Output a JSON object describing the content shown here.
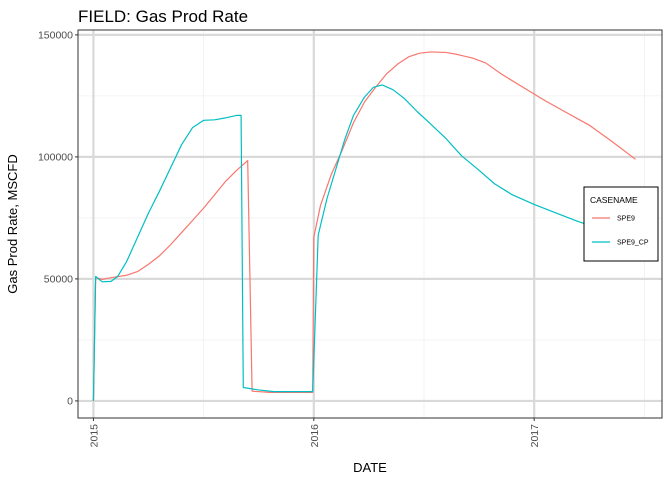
{
  "chart_data": {
    "type": "line",
    "title": "FIELD:  Gas Prod Rate",
    "xlabel": "DATE",
    "ylabel": "Gas Prod Rate, MSCFD",
    "x_ticks": [
      "2015",
      "2016",
      "2017"
    ],
    "x_range": [
      2014.93,
      2017.58
    ],
    "y_ticks": [
      0,
      50000,
      100000,
      150000
    ],
    "y_tick_labels": [
      "0",
      "50000",
      "100000",
      "150000"
    ],
    "y_range": [
      -7000,
      152000
    ],
    "grid": true,
    "legend": {
      "title": "CASENAME",
      "placement": "right"
    },
    "series": [
      {
        "name": "SPE9",
        "color": "#F8766D",
        "points": [
          [
            2015.0,
            0
          ],
          [
            2015.01,
            50500
          ],
          [
            2015.04,
            49800
          ],
          [
            2015.06,
            50200
          ],
          [
            2015.1,
            50800
          ],
          [
            2015.15,
            51500
          ],
          [
            2015.2,
            53000
          ],
          [
            2015.25,
            56000
          ],
          [
            2015.3,
            59500
          ],
          [
            2015.35,
            64000
          ],
          [
            2015.4,
            69000
          ],
          [
            2015.45,
            74000
          ],
          [
            2015.5,
            79000
          ],
          [
            2015.55,
            84500
          ],
          [
            2015.6,
            90000
          ],
          [
            2015.65,
            94500
          ],
          [
            2015.7,
            98500
          ],
          [
            2015.72,
            4000
          ],
          [
            2015.8,
            3500
          ],
          [
            2015.995,
            3500
          ],
          [
            2016.0,
            67000
          ],
          [
            2016.03,
            80000
          ],
          [
            2016.08,
            93000
          ],
          [
            2016.13,
            103000
          ],
          [
            2016.18,
            114000
          ],
          [
            2016.23,
            122500
          ],
          [
            2016.28,
            128500
          ],
          [
            2016.33,
            134000
          ],
          [
            2016.38,
            138000
          ],
          [
            2016.43,
            141000
          ],
          [
            2016.48,
            142500
          ],
          [
            2016.53,
            143000
          ],
          [
            2016.6,
            142800
          ],
          [
            2016.65,
            142000
          ],
          [
            2016.72,
            140500
          ],
          [
            2016.78,
            138500
          ],
          [
            2016.85,
            134000
          ],
          [
            2016.95,
            128500
          ],
          [
            2017.05,
            123000
          ],
          [
            2017.15,
            118000
          ],
          [
            2017.25,
            113000
          ],
          [
            2017.35,
            106500
          ],
          [
            2017.46,
            99000
          ]
        ]
      },
      {
        "name": "SPE9_CP",
        "color": "#00BFC4",
        "points": [
          [
            2015.0,
            0
          ],
          [
            2015.01,
            51000
          ],
          [
            2015.04,
            48800
          ],
          [
            2015.08,
            49000
          ],
          [
            2015.11,
            51000
          ],
          [
            2015.15,
            57000
          ],
          [
            2015.2,
            67000
          ],
          [
            2015.25,
            77000
          ],
          [
            2015.3,
            86000
          ],
          [
            2015.35,
            95500
          ],
          [
            2015.4,
            105000
          ],
          [
            2015.45,
            112000
          ],
          [
            2015.5,
            115000
          ],
          [
            2015.55,
            115200
          ],
          [
            2015.6,
            116000
          ],
          [
            2015.65,
            117000
          ],
          [
            2015.67,
            117000
          ],
          [
            2015.68,
            5500
          ],
          [
            2015.75,
            4500
          ],
          [
            2015.82,
            3800
          ],
          [
            2015.995,
            3800
          ],
          [
            2016.02,
            68000
          ],
          [
            2016.06,
            83000
          ],
          [
            2016.1,
            95000
          ],
          [
            2016.14,
            107000
          ],
          [
            2016.18,
            117000
          ],
          [
            2016.23,
            124500
          ],
          [
            2016.27,
            128500
          ],
          [
            2016.31,
            129500
          ],
          [
            2016.36,
            127500
          ],
          [
            2016.41,
            124000
          ],
          [
            2016.47,
            118500
          ],
          [
            2016.53,
            113500
          ],
          [
            2016.6,
            107500
          ],
          [
            2016.67,
            100500
          ],
          [
            2016.75,
            94500
          ],
          [
            2016.82,
            89000
          ],
          [
            2016.9,
            84500
          ],
          [
            2017.0,
            80500
          ],
          [
            2017.1,
            77000
          ],
          [
            2017.2,
            73500
          ],
          [
            2017.3,
            70500
          ],
          [
            2017.38,
            68500
          ]
        ]
      }
    ]
  }
}
